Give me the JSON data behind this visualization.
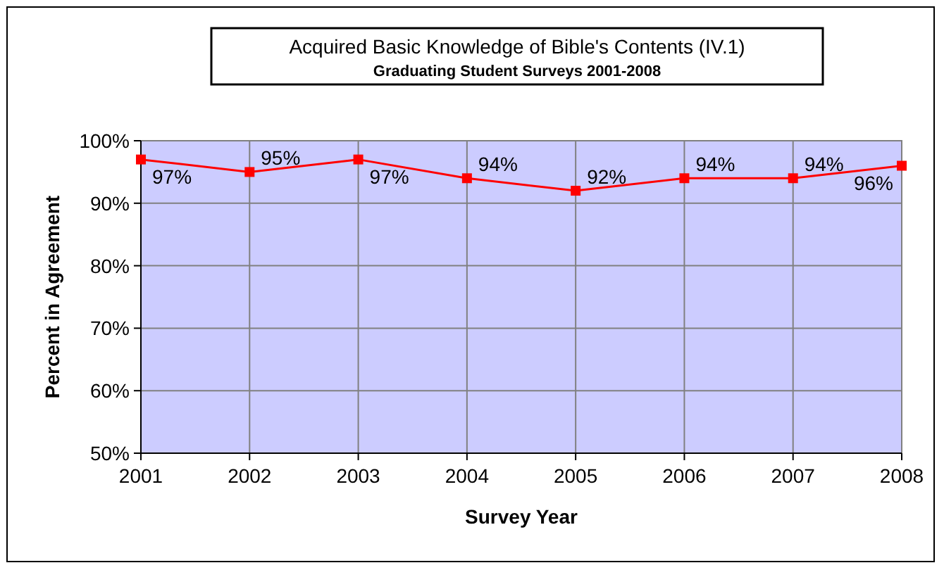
{
  "chart_data": {
    "type": "line",
    "title": "Acquired Basic Knowledge of Bible's Contents (IV.1)",
    "subtitle": "Graduating Student Surveys 2001-2008",
    "xlabel": "Survey Year",
    "ylabel": "Percent in Agreement",
    "categories": [
      "2001",
      "2002",
      "2003",
      "2004",
      "2005",
      "2006",
      "2007",
      "2008"
    ],
    "series": [
      {
        "color": "#ff0000",
        "values": [
          97,
          95,
          97,
          94,
          92,
          94,
          94,
          96
        ]
      }
    ],
    "value_labels": [
      "97%",
      "95%",
      "97%",
      "94%",
      "92%",
      "94%",
      "94%",
      "96%"
    ],
    "ylim": [
      50,
      100
    ],
    "yticks": [
      {
        "value": 50,
        "label": "50%"
      },
      {
        "value": 60,
        "label": "60%"
      },
      {
        "value": 70,
        "label": "70%"
      },
      {
        "value": 80,
        "label": "80%"
      },
      {
        "value": 90,
        "label": "90%"
      },
      {
        "value": 100,
        "label": "100%"
      }
    ],
    "grid": true,
    "marker": "square",
    "line_style": "solid"
  }
}
